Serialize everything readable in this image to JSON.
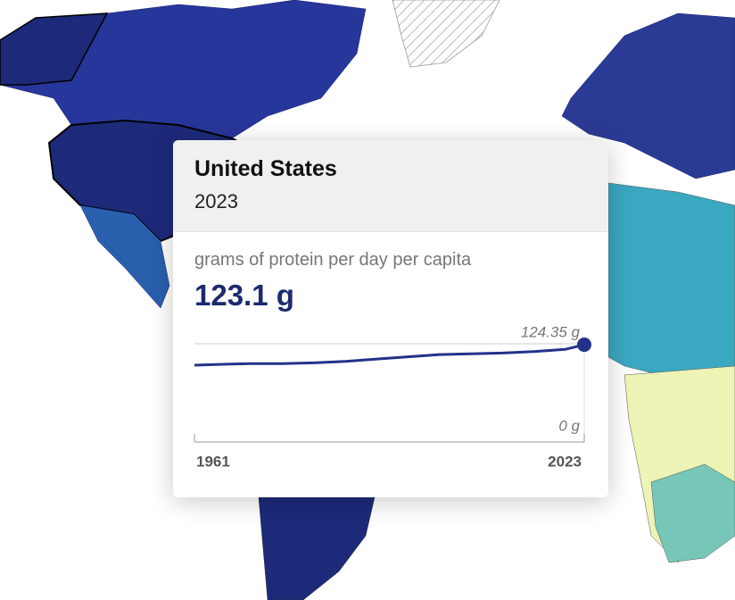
{
  "tooltip": {
    "title": "United States",
    "year": "2023",
    "indicator": "grams of protein per day per capita",
    "value": {
      "value": 123.1,
      "label": "123.1 g"
    }
  },
  "chart_data": {
    "type": "line",
    "x": [
      1961,
      1965,
      1970,
      1975,
      1980,
      1985,
      1990,
      1995,
      2000,
      2005,
      2010,
      2015,
      2020,
      2023
    ],
    "series": [
      {
        "color": "#22328a",
        "values": [
          96,
          97,
          98,
          98,
          99,
          101,
          104,
          107,
          110,
          111,
          112,
          114,
          117,
          123.1
        ]
      }
    ],
    "xlim": [
      1961,
      2023
    ],
    "xticks": [
      1961,
      2023
    ],
    "ylim": [
      0,
      124.35
    ],
    "yticks": [
      {
        "value": 0,
        "label": "0 g"
      },
      {
        "value": 124.35,
        "label": "124.35 g"
      }
    ]
  }
}
